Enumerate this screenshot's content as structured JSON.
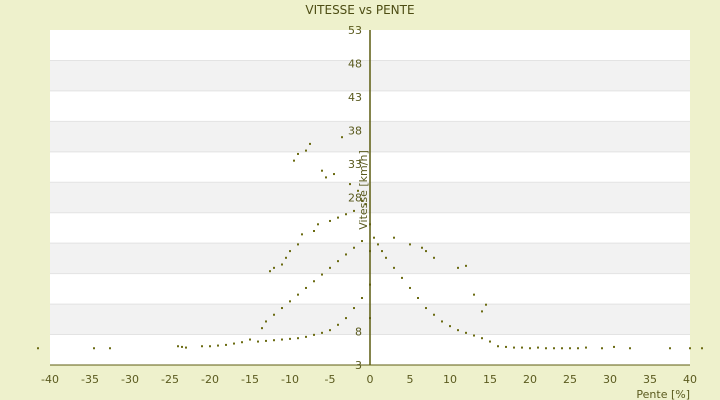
{
  "chart_data": {
    "type": "scatter",
    "title": "VITESSE vs PENTE",
    "xlabel": "Pente [%]",
    "ylabel": "Vitesse [km/h]",
    "xlim": [
      -40,
      40
    ],
    "ylim": [
      3,
      53
    ],
    "x_ticks": [
      -40,
      -35,
      -30,
      -25,
      -20,
      -15,
      -10,
      -5,
      0,
      5,
      10,
      15,
      20,
      25,
      30,
      35,
      40
    ],
    "y_ticks": [
      3,
      8,
      13,
      18,
      23,
      28,
      33,
      38,
      43,
      48,
      53
    ],
    "y_tick_labels": [
      "3",
      "8",
      "",
      "",
      "",
      "28",
      "33",
      "38",
      "43",
      "48",
      "53"
    ],
    "grid": "horizontal alternating bands",
    "legend": "none",
    "colors": {
      "marker": "#6b6b12",
      "axis": "#5c5c10",
      "band_light": "#ffffff",
      "band_gray": "#f2f2f2",
      "background": "#eef1cc"
    },
    "series": [
      {
        "values": [
          [
            -41.5,
            5.5
          ],
          [
            -34.5,
            5.5
          ],
          [
            -32.5,
            5.5
          ],
          [
            -24,
            5.8
          ],
          [
            -23.5,
            5.7
          ],
          [
            -23,
            5.6
          ],
          [
            -21,
            5.8
          ],
          [
            -20,
            5.8
          ],
          [
            -19,
            5.9
          ],
          [
            -18,
            6.0
          ],
          [
            -17,
            6.2
          ],
          [
            -16,
            6.4
          ],
          [
            -15,
            6.8
          ],
          [
            -14,
            6.5
          ],
          [
            -13,
            6.6
          ],
          [
            -12,
            6.7
          ],
          [
            -11,
            6.8
          ],
          [
            -10,
            6.9
          ],
          [
            -9,
            7.0
          ],
          [
            -8,
            7.2
          ],
          [
            -7,
            7.5
          ],
          [
            -6,
            7.8
          ],
          [
            -5,
            8.2
          ],
          [
            -4,
            9.0
          ],
          [
            -3,
            10.0
          ],
          [
            -2,
            11.5
          ],
          [
            -1,
            13.0
          ],
          [
            -9.5,
            33.5
          ],
          [
            -9,
            34.5
          ],
          [
            -8,
            35.0
          ],
          [
            -7.5,
            36.0
          ],
          [
            -6,
            32.0
          ],
          [
            -5.5,
            31.0
          ],
          [
            -4.5,
            31.5
          ],
          [
            -3.5,
            37.0
          ],
          [
            -2.5,
            30.0
          ],
          [
            -1.5,
            29.0
          ],
          [
            -1,
            27.5
          ],
          [
            -0.5,
            27.0
          ],
          [
            -12.5,
            17.0
          ],
          [
            -12,
            17.5
          ],
          [
            -11,
            18.0
          ],
          [
            -10.5,
            19.0
          ],
          [
            -10,
            20.0
          ],
          [
            -9,
            21.0
          ],
          [
            -8.5,
            22.5
          ],
          [
            -7,
            23.0
          ],
          [
            -6.5,
            24.0
          ],
          [
            -5,
            24.5
          ],
          [
            -4,
            25.0
          ],
          [
            -3,
            25.5
          ],
          [
            -2,
            26.0
          ],
          [
            -13.5,
            8.5
          ],
          [
            -13,
            9.5
          ],
          [
            -12,
            10.5
          ],
          [
            -11,
            11.5
          ],
          [
            -10,
            12.5
          ],
          [
            -9,
            13.5
          ],
          [
            -8,
            14.5
          ],
          [
            -7,
            15.5
          ],
          [
            -6,
            16.5
          ],
          [
            -5,
            17.5
          ],
          [
            -4,
            18.5
          ],
          [
            -3,
            19.5
          ],
          [
            -2,
            20.5
          ],
          [
            -1,
            21.5
          ],
          [
            0,
            24.0
          ],
          [
            0,
            20.0
          ],
          [
            0,
            15.0
          ],
          [
            0,
            10.0
          ],
          [
            0.5,
            22.0
          ],
          [
            1,
            21.0
          ],
          [
            1.5,
            20.0
          ],
          [
            2,
            19.0
          ],
          [
            3,
            17.5
          ],
          [
            4,
            16.0
          ],
          [
            5,
            14.5
          ],
          [
            6,
            13.0
          ],
          [
            7,
            11.5
          ],
          [
            8,
            10.5
          ],
          [
            9,
            9.5
          ],
          [
            10,
            8.8
          ],
          [
            11,
            8.2
          ],
          [
            12,
            7.8
          ],
          [
            13,
            7.4
          ],
          [
            14,
            7.0
          ],
          [
            15,
            6.5
          ],
          [
            3,
            22.0
          ],
          [
            5,
            21.0
          ],
          [
            6.5,
            20.5
          ],
          [
            7,
            20.0
          ],
          [
            8,
            19.0
          ],
          [
            11,
            17.5
          ],
          [
            12,
            17.8
          ],
          [
            13,
            13.5
          ],
          [
            14,
            11.0
          ],
          [
            14.5,
            12.0
          ],
          [
            16,
            5.8
          ],
          [
            17,
            5.7
          ],
          [
            18,
            5.6
          ],
          [
            19,
            5.6
          ],
          [
            20,
            5.5
          ],
          [
            21,
            5.6
          ],
          [
            22,
            5.5
          ],
          [
            23,
            5.5
          ],
          [
            24,
            5.5
          ],
          [
            25,
            5.5
          ],
          [
            26,
            5.5
          ],
          [
            27,
            5.6
          ],
          [
            29,
            5.5
          ],
          [
            30.5,
            5.7
          ],
          [
            32.5,
            5.5
          ],
          [
            37.5,
            5.5
          ],
          [
            40,
            5.5
          ],
          [
            41.5,
            5.5
          ]
        ]
      }
    ]
  }
}
